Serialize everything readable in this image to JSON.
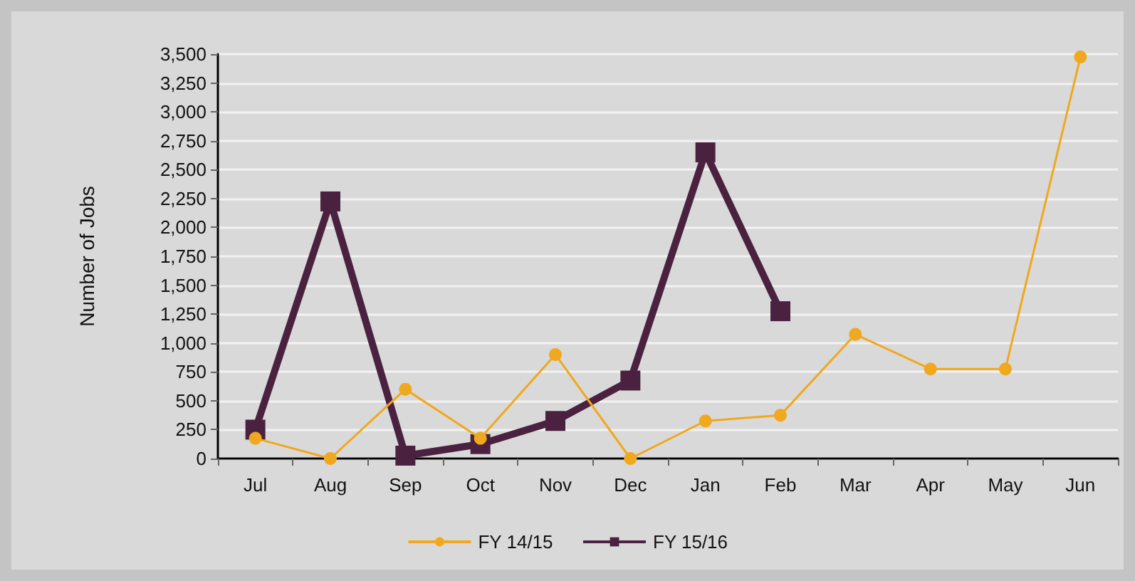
{
  "chart_data": {
    "type": "line",
    "ylabel": "Number of Jobs",
    "categories": [
      "Jul",
      "Aug",
      "Sep",
      "Oct",
      "Nov",
      "Dec",
      "Jan",
      "Feb",
      "Mar",
      "Apr",
      "May",
      "Jun"
    ],
    "series": [
      {
        "name": "FY 14/15",
        "color": "#f0a81e",
        "marker": "circle",
        "values": [
          175,
          0,
          600,
          175,
          900,
          0,
          325,
          375,
          1075,
          775,
          775,
          3475
        ]
      },
      {
        "name": "FY 15/16",
        "color": "#4a2240",
        "marker": "square",
        "values": [
          250,
          2225,
          25,
          125,
          325,
          675,
          2650,
          1275,
          null,
          null,
          null,
          null
        ]
      }
    ],
    "ylim": [
      0,
      3500
    ],
    "yticks": [
      {
        "value": 0,
        "label": "0"
      },
      {
        "value": 250,
        "label": "250"
      },
      {
        "value": 500,
        "label": "500"
      },
      {
        "value": 750,
        "label": "750"
      },
      {
        "value": 1000,
        "label": "1,000"
      },
      {
        "value": 1250,
        "label": "1,250"
      },
      {
        "value": 1500,
        "label": "1,500"
      },
      {
        "value": 1750,
        "label": "1,750"
      },
      {
        "value": 2000,
        "label": "2,000"
      },
      {
        "value": 2250,
        "label": "2,250"
      },
      {
        "value": 2500,
        "label": "2,500"
      },
      {
        "value": 2750,
        "label": "2,750"
      },
      {
        "value": 3000,
        "label": "3,000"
      },
      {
        "value": 3250,
        "label": "3,250"
      },
      {
        "value": 3500,
        "label": "3,500"
      }
    ],
    "grid": "y",
    "legend": "bottom"
  }
}
